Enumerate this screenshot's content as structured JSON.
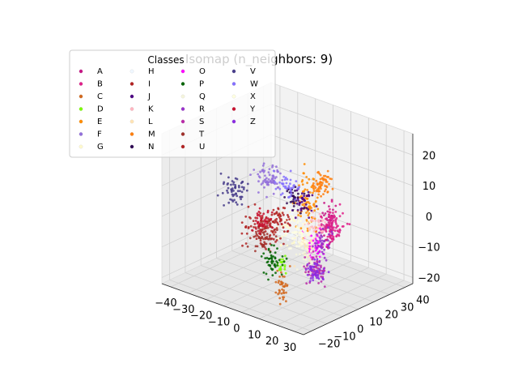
{
  "chart_data": {
    "type": "scatter",
    "projection": "3d",
    "title": "Isomap (n_neighbors: 9)",
    "xlabel": "",
    "ylabel": "",
    "zlabel": "",
    "xlim": [
      -45,
      35
    ],
    "ylim": [
      -25,
      45
    ],
    "zlim": [
      -22,
      27
    ],
    "xticks": [
      -40,
      -30,
      -20,
      -10,
      0,
      10,
      20,
      30
    ],
    "yticks": [
      -20,
      -10,
      0,
      10,
      20,
      30,
      40
    ],
    "zticks": [
      -20,
      -10,
      0,
      10,
      20
    ],
    "grid": true,
    "legend": {
      "title": "Classes",
      "placement": "top-left",
      "columns": 4
    },
    "series": [
      {
        "name": "A",
        "color": "#c71585",
        "center": [
          18,
          10,
          0
        ],
        "spread": [
          3,
          3,
          6
        ],
        "n": 70
      },
      {
        "name": "B",
        "color": "#e0218a",
        "center": [
          25,
          5,
          5
        ],
        "spread": [
          4,
          4,
          4
        ],
        "n": 80
      },
      {
        "name": "C",
        "color": "#d2691e",
        "center": [
          10,
          -10,
          -16
        ],
        "spread": [
          2,
          2,
          4
        ],
        "n": 40
      },
      {
        "name": "D",
        "color": "#7cfc00",
        "center": [
          5,
          -5,
          -10
        ],
        "spread": [
          2,
          2,
          2
        ],
        "n": 20
      },
      {
        "name": "E",
        "color": "#ff8c00",
        "center": [
          2,
          15,
          5
        ],
        "spread": [
          4,
          4,
          7
        ],
        "n": 90
      },
      {
        "name": "F",
        "color": "#9370db",
        "center": [
          -20,
          15,
          8
        ],
        "spread": [
          5,
          3,
          3
        ],
        "n": 70
      },
      {
        "name": "G",
        "color": "#fffacd",
        "center": [
          5,
          0,
          0
        ],
        "spread": [
          5,
          5,
          5
        ],
        "n": 40
      },
      {
        "name": "H",
        "color": "#f0f8ff",
        "center": [
          0,
          5,
          0
        ],
        "spread": [
          5,
          5,
          5
        ],
        "n": 30
      },
      {
        "name": "I",
        "color": "#b22222",
        "center": [
          -15,
          5,
          -5
        ],
        "spread": [
          8,
          4,
          4
        ],
        "n": 80
      },
      {
        "name": "J",
        "color": "#4b0082",
        "center": [
          0,
          15,
          5
        ],
        "spread": [
          3,
          3,
          3
        ],
        "n": 40
      },
      {
        "name": "K",
        "color": "#ffb6c1",
        "center": [
          12,
          10,
          0
        ],
        "spread": [
          3,
          3,
          3
        ],
        "n": 40
      },
      {
        "name": "L",
        "color": "#ffe4b5",
        "center": [
          15,
          0,
          -3
        ],
        "spread": [
          3,
          3,
          3
        ],
        "n": 40
      },
      {
        "name": "M",
        "color": "#ff7f0e",
        "center": [
          5,
          20,
          10
        ],
        "spread": [
          3,
          3,
          3
        ],
        "n": 60
      },
      {
        "name": "N",
        "color": "#2e0854",
        "center": [
          -5,
          15,
          5
        ],
        "spread": [
          3,
          3,
          3
        ],
        "n": 30
      },
      {
        "name": "O",
        "color": "#ff00ff",
        "center": [
          15,
          5,
          -5
        ],
        "spread": [
          3,
          3,
          3
        ],
        "n": 40
      },
      {
        "name": "P",
        "color": "#006400",
        "center": [
          0,
          -5,
          -10
        ],
        "spread": [
          3,
          3,
          3
        ],
        "n": 50
      },
      {
        "name": "Q",
        "color": "#f5f5dc",
        "center": [
          20,
          -5,
          -5
        ],
        "spread": [
          4,
          4,
          4
        ],
        "n": 40
      },
      {
        "name": "R",
        "color": "#9932cc",
        "center": [
          15,
          10,
          -5
        ],
        "spread": [
          3,
          3,
          3
        ],
        "n": 40
      },
      {
        "name": "S",
        "color": "#ba2aa8",
        "center": [
          20,
          0,
          -10
        ],
        "spread": [
          3,
          3,
          3
        ],
        "n": 60
      },
      {
        "name": "T",
        "color": "#a0302a",
        "center": [
          -10,
          0,
          -5
        ],
        "spread": [
          4,
          3,
          3
        ],
        "n": 50
      },
      {
        "name": "U",
        "color": "#b22222",
        "center": [
          -5,
          5,
          0
        ],
        "spread": [
          4,
          3,
          3
        ],
        "n": 50
      },
      {
        "name": "V",
        "color": "#483d8b",
        "center": [
          -30,
          5,
          5
        ],
        "spread": [
          4,
          4,
          3
        ],
        "n": 60
      },
      {
        "name": "W",
        "color": "#8470ff",
        "center": [
          -15,
          20,
          5
        ],
        "spread": [
          4,
          3,
          3
        ],
        "n": 40
      },
      {
        "name": "X",
        "color": "#ffffe0",
        "center": [
          10,
          0,
          0
        ],
        "spread": [
          4,
          4,
          4
        ],
        "n": 40
      },
      {
        "name": "Y",
        "color": "#c8102e",
        "center": [
          -10,
          0,
          0
        ],
        "spread": [
          3,
          3,
          3
        ],
        "n": 40
      },
      {
        "name": "Z",
        "color": "#8a2be2",
        "center": [
          20,
          0,
          -10
        ],
        "spread": [
          3,
          3,
          3
        ],
        "n": 50
      }
    ]
  }
}
